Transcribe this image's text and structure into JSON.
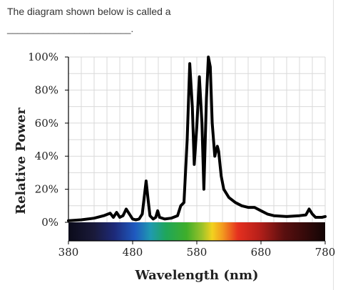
{
  "question": {
    "text": "The diagram shown below is called a",
    "blank": "________________________."
  },
  "chart_data": {
    "type": "line",
    "xlabel": "Wavelength (nm)",
    "ylabel": "Relative Power",
    "xlim": [
      380,
      780
    ],
    "ylim": [
      0,
      100
    ],
    "xticks": [
      "380",
      "480",
      "580",
      "680",
      "780"
    ],
    "yticks": [
      "0%",
      "20%",
      "40%",
      "60%",
      "80%",
      "100%"
    ],
    "grid": true,
    "spectrum_bar": true,
    "series": [
      {
        "points": [
          [
            380,
            1
          ],
          [
            400,
            1.5
          ],
          [
            420,
            2.5
          ],
          [
            435,
            4
          ],
          [
            445,
            5.5
          ],
          [
            450,
            3
          ],
          [
            455,
            6
          ],
          [
            460,
            3
          ],
          [
            465,
            4
          ],
          [
            470,
            8
          ],
          [
            475,
            5
          ],
          [
            480,
            2
          ],
          [
            485,
            1.5
          ],
          [
            490,
            2
          ],
          [
            495,
            5
          ],
          [
            498,
            15
          ],
          [
            501,
            25
          ],
          [
            504,
            14
          ],
          [
            507,
            4
          ],
          [
            512,
            2
          ],
          [
            516,
            3
          ],
          [
            519,
            7
          ],
          [
            522,
            3
          ],
          [
            530,
            2
          ],
          [
            540,
            2.5
          ],
          [
            550,
            4
          ],
          [
            555,
            10
          ],
          [
            560,
            12
          ],
          [
            565,
            50
          ],
          [
            569,
            96
          ],
          [
            573,
            70
          ],
          [
            576,
            35
          ],
          [
            580,
            58
          ],
          [
            584,
            88
          ],
          [
            588,
            60
          ],
          [
            591,
            20
          ],
          [
            595,
            75
          ],
          [
            598,
            100
          ],
          [
            601,
            94
          ],
          [
            604,
            60
          ],
          [
            608,
            40
          ],
          [
            612,
            46
          ],
          [
            614,
            43
          ],
          [
            618,
            28
          ],
          [
            622,
            20
          ],
          [
            630,
            15
          ],
          [
            640,
            12
          ],
          [
            650,
            10
          ],
          [
            660,
            9
          ],
          [
            670,
            9
          ],
          [
            680,
            7
          ],
          [
            690,
            5
          ],
          [
            700,
            4
          ],
          [
            720,
            3.5
          ],
          [
            740,
            4
          ],
          [
            750,
            4.5
          ],
          [
            755,
            8
          ],
          [
            760,
            5
          ],
          [
            765,
            3
          ],
          [
            775,
            3
          ],
          [
            780,
            3.5
          ]
        ]
      }
    ]
  }
}
